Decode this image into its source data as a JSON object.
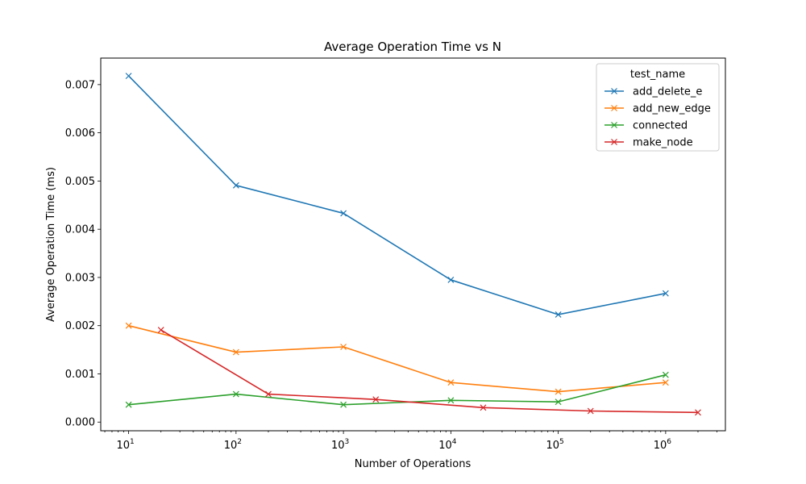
{
  "chart_data": {
    "type": "line",
    "title": "Average Operation Time vs N",
    "xlabel": "Number of Operations",
    "ylabel": "Average Operation Time (ms)",
    "xscale": "log",
    "xlim": [
      5.5,
      3600000
    ],
    "ylim": [
      -0.00018,
      0.00755
    ],
    "x_ticks": [
      10,
      100,
      1000,
      10000,
      100000,
      1000000
    ],
    "x_tick_labels": [
      {
        "base": "10",
        "exp": "1"
      },
      {
        "base": "10",
        "exp": "2"
      },
      {
        "base": "10",
        "exp": "3"
      },
      {
        "base": "10",
        "exp": "4"
      },
      {
        "base": "10",
        "exp": "5"
      },
      {
        "base": "10",
        "exp": "6"
      }
    ],
    "y_ticks": [
      0.0,
      0.001,
      0.002,
      0.003,
      0.004,
      0.005,
      0.006,
      0.007
    ],
    "y_tick_labels": [
      "0.000",
      "0.001",
      "0.002",
      "0.003",
      "0.004",
      "0.005",
      "0.006",
      "0.007"
    ],
    "grid": false,
    "marker": "x",
    "legend": {
      "title": "test_name",
      "position": "top-right"
    },
    "series": [
      {
        "name": "add_delete_e",
        "color": "#1f77b4",
        "x": [
          10,
          100,
          1000,
          10000,
          100000,
          1000000
        ],
        "y": [
          0.00718,
          0.00491,
          0.00433,
          0.00295,
          0.00223,
          0.00267
        ]
      },
      {
        "name": "add_new_edge",
        "color": "#ff7f0e",
        "x": [
          10,
          100,
          1000,
          10000,
          100000,
          1000000
        ],
        "y": [
          0.002,
          0.00145,
          0.00156,
          0.00082,
          0.00063,
          0.00082
        ]
      },
      {
        "name": "connected",
        "color": "#2ca02c",
        "x": [
          10,
          100,
          1000,
          10000,
          100000,
          1000000
        ],
        "y": [
          0.00036,
          0.00058,
          0.00036,
          0.00045,
          0.00042,
          0.00098
        ]
      },
      {
        "name": "make_node",
        "color": "#d62728",
        "x": [
          20,
          200,
          2000,
          20000,
          200000,
          2000000
        ],
        "y": [
          0.00191,
          0.00058,
          0.00047,
          0.0003,
          0.00023,
          0.0002
        ]
      }
    ]
  }
}
